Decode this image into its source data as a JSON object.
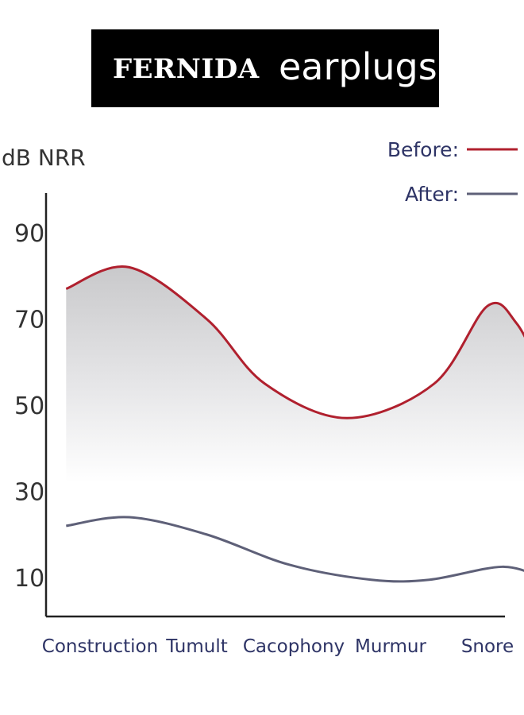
{
  "header": {
    "brand": "FERNIDA",
    "product": "earplugs"
  },
  "chart_data": {
    "type": "line",
    "title": "",
    "ylabel": "dB NRR",
    "xlabel": "",
    "categories": [
      "Construction",
      "Tumult",
      "Cacophony",
      "Murmur",
      "Snore"
    ],
    "yticks": [
      10,
      30,
      50,
      70,
      90
    ],
    "ylim": [
      4,
      100
    ],
    "grid": false,
    "legend_position": "top-right",
    "series": [
      {
        "name": "Before:",
        "color": "#b0202e",
        "points": [
          {
            "x": -0.35,
            "y": 77
          },
          {
            "x": 0.3,
            "y": 82
          },
          {
            "x": 1.1,
            "y": 70
          },
          {
            "x": 1.7,
            "y": 55
          },
          {
            "x": 2.55,
            "y": 47
          },
          {
            "x": 3.45,
            "y": 55
          },
          {
            "x": 4.0,
            "y": 73
          },
          {
            "x": 4.3,
            "y": 69
          },
          {
            "x": 4.55,
            "y": 58
          }
        ]
      },
      {
        "name": "After:",
        "color": "#5e6078",
        "points": [
          {
            "x": -0.35,
            "y": 22
          },
          {
            "x": 0.3,
            "y": 24
          },
          {
            "x": 1.1,
            "y": 20
          },
          {
            "x": 1.95,
            "y": 13
          },
          {
            "x": 2.8,
            "y": 9.5
          },
          {
            "x": 3.4,
            "y": 9.5
          },
          {
            "x": 4.15,
            "y": 12.5
          },
          {
            "x": 4.55,
            "y": 10
          }
        ]
      }
    ]
  }
}
